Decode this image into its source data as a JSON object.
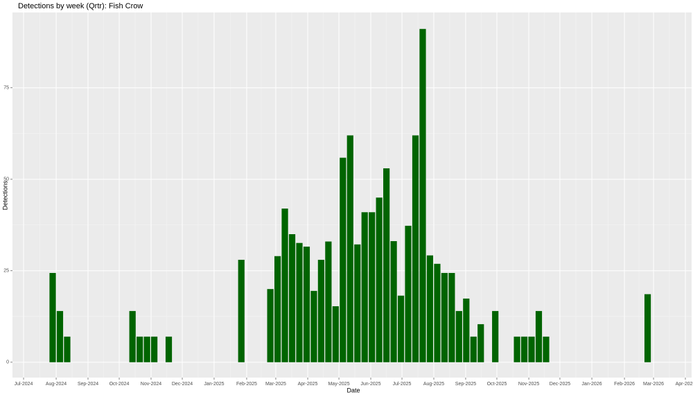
{
  "chart_data": {
    "type": "bar",
    "title": "Detections by week (Qrtr): Fish Crow",
    "x_label": "Date",
    "y_label": "Detections",
    "color": "#006400",
    "grid": true,
    "categories": [
      null,
      null,
      null,
      null,
      null,
      null,
      null,
      null,
      null,
      null,
      null,
      null,
      null,
      null,
      null,
      null,
      null,
      null,
      null,
      null,
      null,
      null,
      null,
      null,
      null,
      null,
      null,
      null,
      null,
      null,
      null,
      null,
      null,
      null,
      null,
      null,
      null,
      null,
      null,
      null,
      null,
      null,
      null,
      null,
      null,
      null,
      null,
      null,
      null,
      null,
      null,
      null,
      null,
      null,
      null,
      null,
      null,
      null,
      null,
      null,
      null,
      null,
      null,
      null,
      null,
      null,
      null,
      null,
      null,
      null,
      null,
      null,
      null,
      null,
      null,
      null,
      null,
      null,
      null,
      null,
      null,
      null,
      null
    ],
    "values": [
      24.4,
      14,
      7,
      null,
      null,
      null,
      null,
      null,
      null,
      null,
      null,
      14,
      7,
      7,
      7,
      null,
      7,
      null,
      null,
      null,
      null,
      null,
      null,
      null,
      null,
      null,
      28,
      null,
      null,
      null,
      20,
      29,
      42,
      35,
      32.6,
      31.6,
      19.5,
      28,
      33,
      15.3,
      55.9,
      62,
      32.2,
      41,
      41,
      45,
      53,
      33.1,
      18.2,
      37.3,
      62,
      91.1,
      29.2,
      26.9,
      24.4,
      24.4,
      14,
      17.4,
      7,
      10.4,
      null,
      14,
      null,
      null,
      7,
      7,
      7,
      14,
      7,
      null,
      null,
      null,
      null,
      null,
      null,
      null,
      null,
      null,
      null,
      null,
      null,
      null,
      18.6
    ],
    "xlim": [
      -5.54,
      88.06
    ],
    "xticks": [
      {
        "value": -4.01,
        "label": "Jul-2024"
      },
      {
        "value": 0.48,
        "label": "Aug-2024"
      },
      {
        "value": 4.87,
        "label": "Sep-2024"
      },
      {
        "value": 9.17,
        "label": "Oct-2024"
      },
      {
        "value": 13.56,
        "label": "Nov-2024"
      },
      {
        "value": 17.86,
        "label": "Dec-2024"
      },
      {
        "value": 22.25,
        "label": "Jan-2025"
      },
      {
        "value": 26.74,
        "label": "Feb-2025"
      },
      {
        "value": 30.75,
        "label": "Mar-2025"
      },
      {
        "value": 35.15,
        "label": "Apr-2025"
      },
      {
        "value": 39.45,
        "label": "May-2025"
      },
      {
        "value": 43.84,
        "label": "Jun-2025"
      },
      {
        "value": 48.14,
        "label": "Jul-2025"
      },
      {
        "value": 52.53,
        "label": "Aug-2025"
      },
      {
        "value": 56.92,
        "label": "Sep-2025"
      },
      {
        "value": 61.22,
        "label": "Oct-2025"
      },
      {
        "value": 65.62,
        "label": "Nov-2025"
      },
      {
        "value": 69.91,
        "label": "Dec-2025"
      },
      {
        "value": 74.31,
        "label": "Jan-2026"
      },
      {
        "value": 78.8,
        "label": "Feb-2026"
      },
      {
        "value": 82.81,
        "label": "Mar-2026"
      },
      {
        "value": 87.2,
        "label": "Apr-2026"
      }
    ],
    "ylim": [
      -4.2,
      95.6
    ],
    "yticks": [
      0,
      25,
      50,
      75
    ]
  }
}
